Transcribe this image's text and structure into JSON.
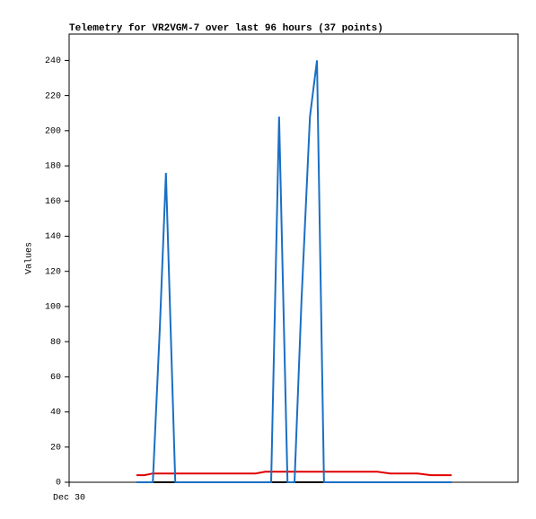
{
  "chart_data": {
    "type": "line",
    "title": "Telemetry for VR2VGM-7 over last 96 hours (37 points)",
    "y_label": "Values",
    "x": [
      14.4,
      16.1,
      17.9,
      19.4,
      20.7,
      22.7,
      24.6,
      26.5,
      28.4,
      30.3,
      32.3,
      34.2,
      36.1,
      38.0,
      39.9,
      41.9,
      43.2,
      44.9,
      46.7,
      48.2,
      49.7,
      51.5,
      53.0,
      54.5,
      57.2,
      60.1,
      63.0,
      65.9,
      68.7,
      71.6,
      74.5,
      77.4,
      78.3,
      79.3,
      80.3,
      81.2,
      81.8
    ],
    "xlim": [
      0,
      96
    ],
    "xticks": [
      {
        "value": 0,
        "label": "Dec 30"
      }
    ],
    "ylim": [
      0,
      255
    ],
    "yticks": [
      0,
      20,
      40,
      60,
      80,
      100,
      120,
      140,
      160,
      180,
      200,
      220,
      240
    ],
    "series": [
      {
        "color": "#e00000",
        "values": [
          4,
          4,
          5,
          5,
          5,
          5,
          5,
          5,
          5,
          5,
          5,
          5,
          5,
          5,
          5,
          6,
          6,
          6,
          6,
          6,
          6,
          6,
          6,
          6,
          6,
          6,
          6,
          6,
          5,
          5,
          5,
          4,
          4,
          4,
          4,
          4,
          4
        ]
      },
      {
        "color": "#000000",
        "values": [
          0,
          0,
          0,
          0,
          0,
          0,
          0,
          0,
          0,
          0,
          0,
          0,
          0,
          0,
          0,
          0,
          0,
          0,
          0,
          0,
          0,
          0,
          0,
          0,
          0,
          0,
          0,
          0,
          0,
          0,
          0,
          0,
          0,
          0,
          0,
          0,
          0
        ]
      },
      {
        "color": "#1a6fc4",
        "values": [
          0,
          0,
          0,
          88,
          176,
          0,
          0,
          0,
          0,
          0,
          0,
          0,
          0,
          0,
          0,
          0,
          0,
          208,
          0,
          0,
          104,
          208,
          240,
          0,
          0,
          0,
          0,
          0,
          0,
          0,
          0,
          0,
          0,
          0,
          0,
          0,
          0
        ]
      }
    ]
  }
}
